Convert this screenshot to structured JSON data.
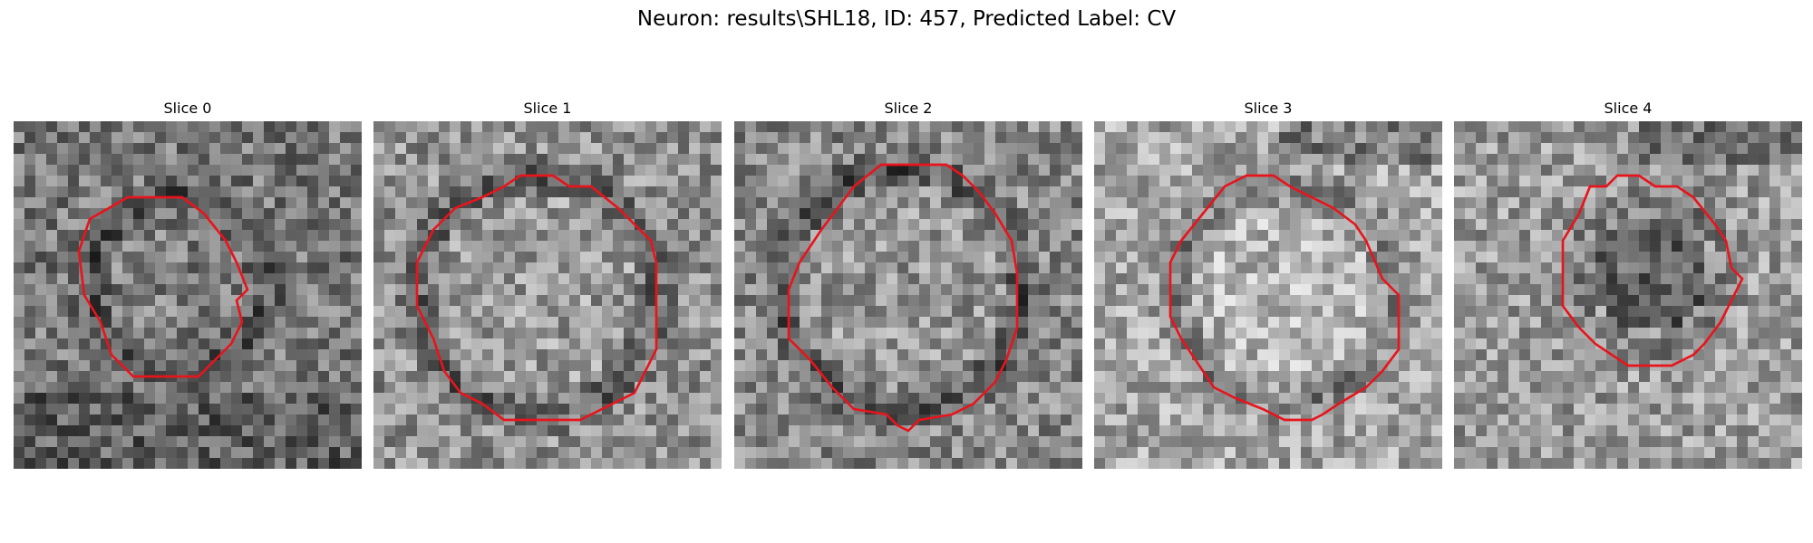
{
  "figure": {
    "title": "Neuron: results\\SHL18, ID: 457, Predicted Label: CV"
  },
  "panels": [
    {
      "title": "Slice 0",
      "image": "grayscale-microscopy-slice",
      "overlay": "red-contour"
    },
    {
      "title": "Slice 1",
      "image": "grayscale-microscopy-slice",
      "overlay": "red-contour"
    },
    {
      "title": "Slice 2",
      "image": "grayscale-microscopy-slice",
      "overlay": "red-contour"
    },
    {
      "title": "Slice 3",
      "image": "grayscale-microscopy-slice",
      "overlay": "red-contour"
    },
    {
      "title": "Slice 4",
      "image": "grayscale-microscopy-slice",
      "overlay": "red-contour"
    }
  ],
  "colors": {
    "contour": "#e8141c"
  }
}
